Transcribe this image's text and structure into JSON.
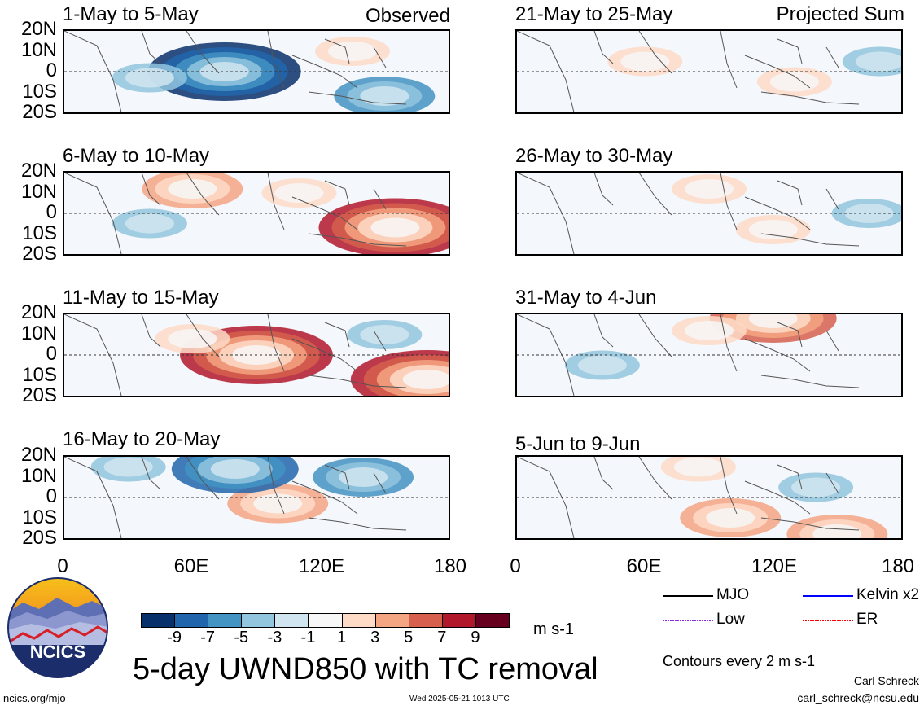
{
  "header": {
    "observed_label": "Observed",
    "projected_label": "Projected Sum"
  },
  "panels": {
    "left": [
      {
        "title": "1-May to 5-May"
      },
      {
        "title": "6-May to 10-May"
      },
      {
        "title": "11-May to 15-May"
      },
      {
        "title": "16-May to 20-May"
      }
    ],
    "right": [
      {
        "title": "21-May to 25-May"
      },
      {
        "title": "26-May to 30-May"
      },
      {
        "title": "31-May to 4-Jun"
      },
      {
        "title": "5-Jun to 9-Jun"
      }
    ]
  },
  "axes": {
    "y_ticks": [
      "20N",
      "10N",
      "0",
      "10S",
      "20S"
    ],
    "x_ticks_left": [
      "0",
      "60E",
      "120E",
      "180"
    ],
    "x_ticks_right": [
      "0",
      "60E",
      "120E",
      "180"
    ]
  },
  "colorbar": {
    "labels": [
      "-9",
      "-7",
      "-5",
      "-3",
      "-1",
      "1",
      "3",
      "5",
      "7",
      "9"
    ],
    "colors": [
      "#08306b",
      "#2166ac",
      "#4393c3",
      "#92c5de",
      "#d1e5f0",
      "#f7f7f7",
      "#fddbc7",
      "#f4a582",
      "#d6604d",
      "#b2182b",
      "#67001f"
    ],
    "units": "m s-1"
  },
  "legend": {
    "items": [
      {
        "label": "MJO",
        "color": "#000000",
        "style": "solid"
      },
      {
        "label": "Kelvin x2",
        "color": "#0000ff",
        "style": "solid"
      },
      {
        "label": "Low",
        "color": "#8a2be2",
        "style": "dotted"
      },
      {
        "label": "ER",
        "color": "#ff0000",
        "style": "dotted"
      }
    ],
    "contour_note": "Contours every 2 m s-1"
  },
  "title": "5-day UWND850 with TC removal",
  "footer": {
    "logo_text": "NCICS",
    "url": "ncics.org/mjo",
    "timestamp": "Wed 2025-05-21 1013 UTC",
    "author": "Carl Schreck",
    "email": "carl_schreck@ncsu.edu"
  },
  "chart_data": {
    "type": "heatmap",
    "variable": "850-hPa zonal wind anomaly",
    "units": "m s-1",
    "longitude_range": [
      0,
      180
    ],
    "latitude_range": [
      -20,
      20
    ],
    "contour_levels": [
      -9,
      -7,
      -5,
      -3,
      -1,
      1,
      3,
      5,
      7,
      9
    ],
    "panels": [
      {
        "period": "1-May to 5-May",
        "type": "Observed",
        "features": [
          {
            "lon": 75,
            "lat": 0,
            "value": -9
          },
          {
            "lon": 40,
            "lat": -3,
            "value": -3
          },
          {
            "lon": 135,
            "lat": 10,
            "value": 3
          },
          {
            "lon": 150,
            "lat": -12,
            "value": -5
          }
        ]
      },
      {
        "period": "6-May to 10-May",
        "type": "Observed",
        "features": [
          {
            "lon": 60,
            "lat": 12,
            "value": 5
          },
          {
            "lon": 155,
            "lat": -7,
            "value": 9
          },
          {
            "lon": 40,
            "lat": -5,
            "value": -3
          },
          {
            "lon": 110,
            "lat": 10,
            "value": 3
          }
        ]
      },
      {
        "period": "11-May to 15-May",
        "type": "Observed",
        "features": [
          {
            "lon": 90,
            "lat": 0,
            "value": 9
          },
          {
            "lon": 170,
            "lat": -12,
            "value": 9
          },
          {
            "lon": 150,
            "lat": 10,
            "value": -3
          },
          {
            "lon": 60,
            "lat": 8,
            "value": 3
          }
        ]
      },
      {
        "period": "16-May to 20-May",
        "type": "Observed",
        "features": [
          {
            "lon": 100,
            "lat": -3,
            "value": 5
          },
          {
            "lon": 80,
            "lat": 14,
            "value": -7
          },
          {
            "lon": 140,
            "lat": 10,
            "value": -5
          },
          {
            "lon": 30,
            "lat": 15,
            "value": -3
          }
        ]
      },
      {
        "period": "21-May to 25-May",
        "type": "Projected Sum",
        "features": [
          {
            "lon": 60,
            "lat": 5,
            "value": 3
          },
          {
            "lon": 130,
            "lat": -5,
            "value": 3
          },
          {
            "lon": 170,
            "lat": 5,
            "value": -3
          }
        ]
      },
      {
        "period": "26-May to 30-May",
        "type": "Projected Sum",
        "features": [
          {
            "lon": 90,
            "lat": 12,
            "value": 3
          },
          {
            "lon": 120,
            "lat": -8,
            "value": 3
          },
          {
            "lon": 165,
            "lat": 0,
            "value": -3
          }
        ]
      },
      {
        "period": "31-May to 4-Jun",
        "type": "Projected Sum",
        "features": [
          {
            "lon": 120,
            "lat": 18,
            "value": 7
          },
          {
            "lon": 90,
            "lat": 12,
            "value": 3
          },
          {
            "lon": 40,
            "lat": -5,
            "value": -3
          }
        ]
      },
      {
        "period": "5-Jun to 9-Jun",
        "type": "Projected Sum",
        "features": [
          {
            "lon": 100,
            "lat": -10,
            "value": 5
          },
          {
            "lon": 150,
            "lat": -18,
            "value": 5
          },
          {
            "lon": 85,
            "lat": 15,
            "value": 3
          },
          {
            "lon": 140,
            "lat": 5,
            "value": -3
          }
        ]
      }
    ]
  }
}
